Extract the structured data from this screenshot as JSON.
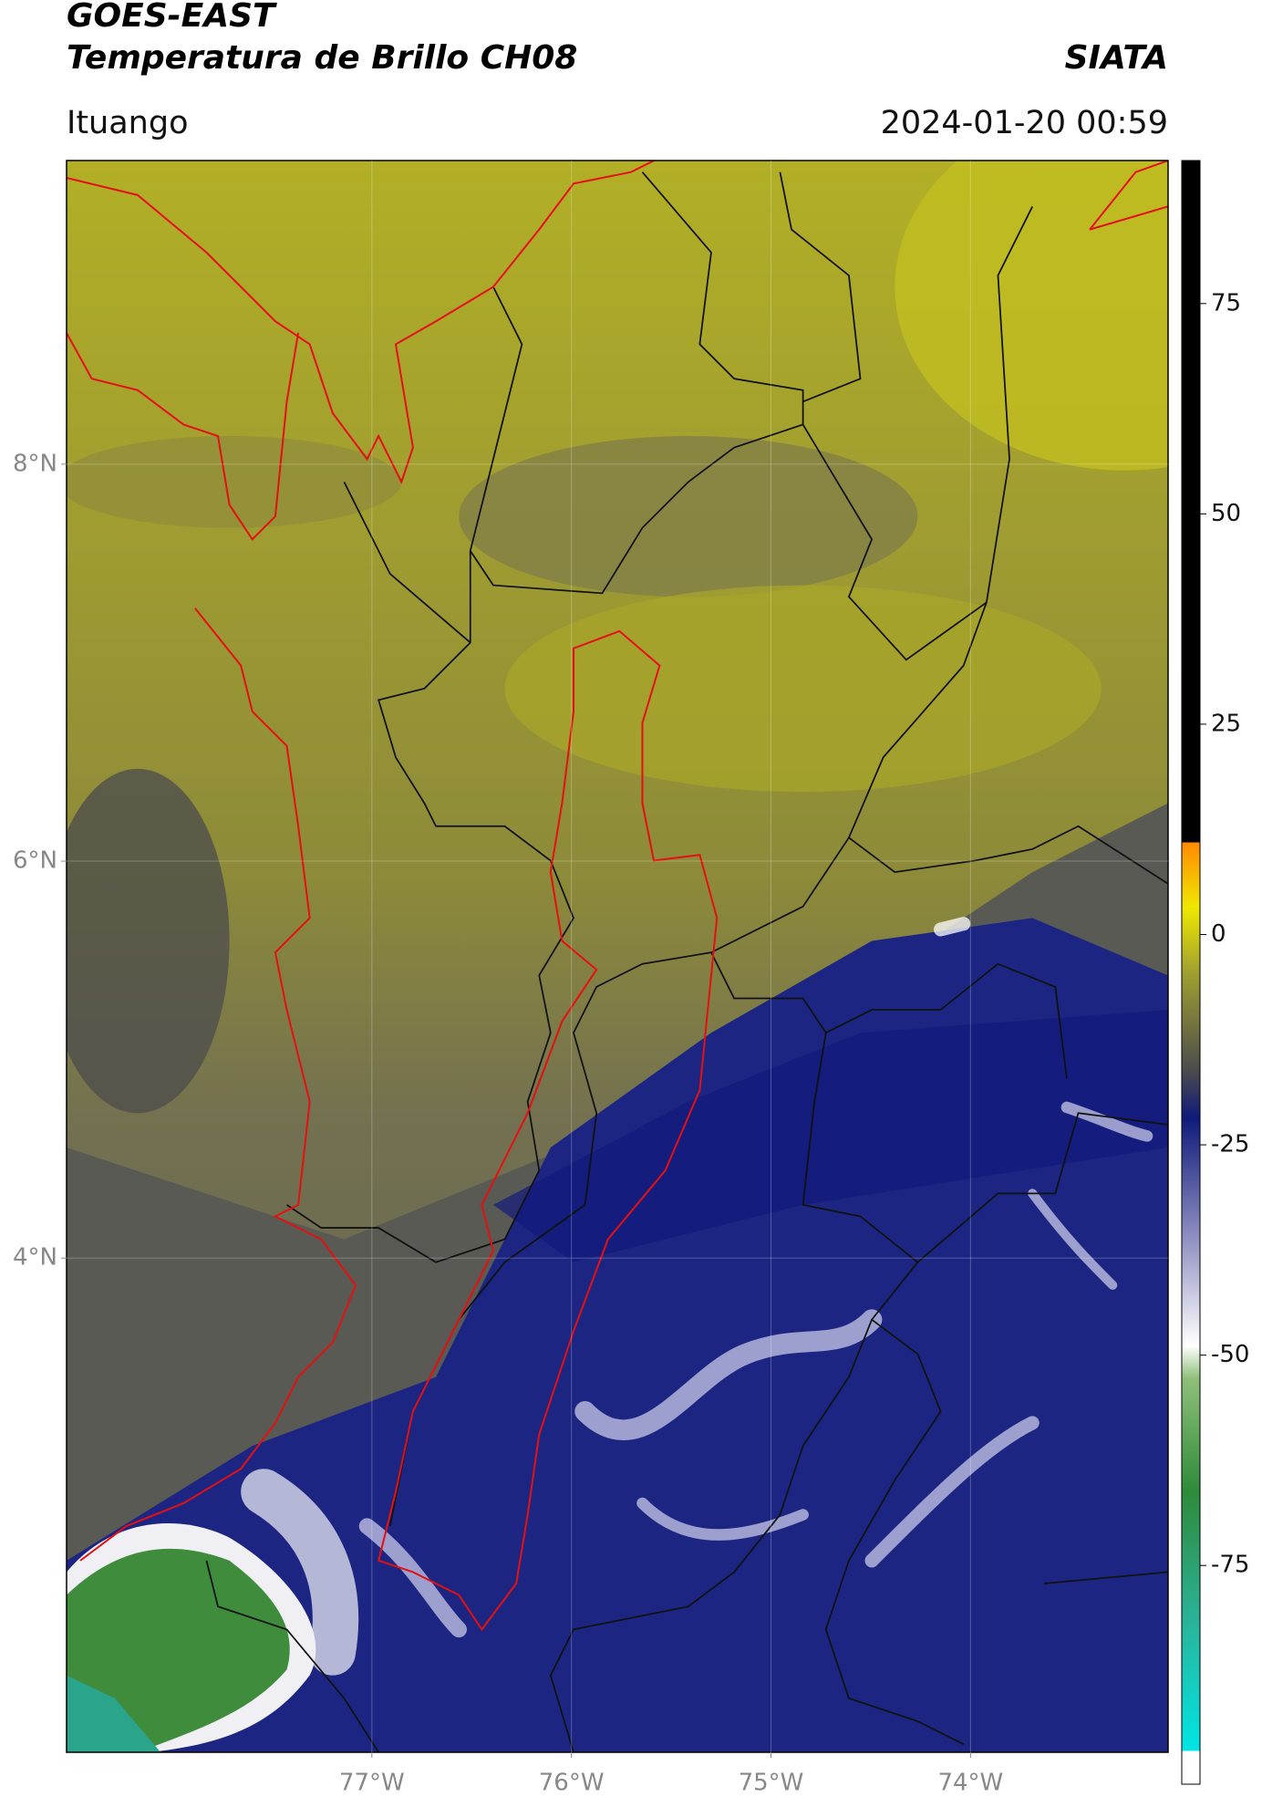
{
  "header": {
    "title": "GOES-EAST",
    "subtitle": "Temperatura de Brillo CH08",
    "brand": "SIATA",
    "location": "Ituango",
    "timestamp": "2024-01-20 00:59"
  },
  "map": {
    "xlim": [
      -78.53,
      -73.01
    ],
    "ylim": [
      1.51,
      9.53
    ],
    "xticks": [
      {
        "value": -77,
        "label": "77°W"
      },
      {
        "value": -76,
        "label": "76°W"
      },
      {
        "value": -75,
        "label": "75°W"
      },
      {
        "value": -74,
        "label": "74°W"
      }
    ],
    "yticks": [
      {
        "value": 4,
        "label": "4°N"
      },
      {
        "value": 6,
        "label": "6°N"
      },
      {
        "value": 8,
        "label": "8°N"
      }
    ],
    "grid": true
  },
  "colorbar": {
    "lim": [
      -101,
      92
    ],
    "ticks": [
      -75,
      -50,
      -25,
      0,
      25,
      50,
      75
    ]
  }
}
